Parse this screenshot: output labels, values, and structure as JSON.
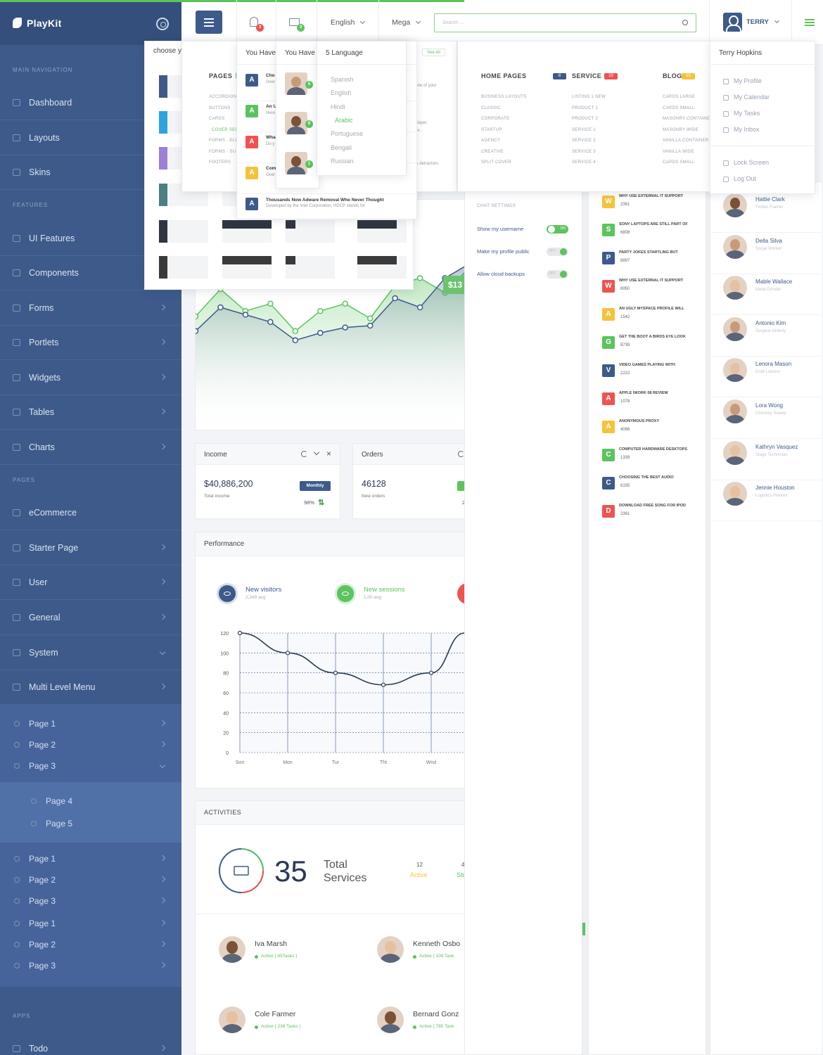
{
  "brand": {
    "name": "PlayKit"
  },
  "sidebar": {
    "sections": [
      "MAIN NAVIGATION",
      "FEATURES",
      "PAGES",
      "APPS"
    ],
    "main": [
      "Dashboard",
      "Layouts",
      "Skins"
    ],
    "features": [
      "UI Features",
      "Components",
      "Forms",
      "Portlets",
      "Widgets",
      "Tables",
      "Charts"
    ],
    "pages": [
      "eCommerce",
      "Starter Page",
      "User",
      "General",
      "System",
      "Multi Level Menu"
    ],
    "multi_a": [
      "Page 1",
      "Page 2",
      "Page 3"
    ],
    "multi_b": [
      "Page 4",
      "Page 5"
    ],
    "multi_c": [
      "Page 1",
      "Page 2",
      "Page 3",
      "Page 1",
      "Page 2",
      "Page 3"
    ],
    "apps": [
      "Todo"
    ]
  },
  "header": {
    "bell_count": "3",
    "mail_count": "3",
    "language": "English",
    "mega": "Mega",
    "search_placeholder": "Search ...",
    "user": "TERRY"
  },
  "skin_dropdown": {
    "label": "choose y"
  },
  "notifications": {
    "title": "You Have",
    "items": [
      {
        "letter": "A",
        "title": "Cho",
        "sub": "Over"
      },
      {
        "letter": "A",
        "title": "An U",
        "sub": "Here"
      },
      {
        "letter": "A",
        "title": "Wha",
        "sub": "Do y"
      },
      {
        "letter": "A",
        "title": "Com",
        "sub": "Over"
      },
      {
        "letter": "A",
        "title": "Thousands Now Adware Removal Who Never Thought",
        "sub": "Developed by the Intel Corporation, HDCP stands for"
      }
    ]
  },
  "messages": {
    "title": "You Have",
    "badges": [
      "5",
      "9",
      "1"
    ]
  },
  "language_dropdown": {
    "title": "5 Language",
    "items": [
      "Spanish",
      "English",
      "Hindi",
      "Arabic",
      "Portuguese",
      "Bengali",
      "Russian"
    ],
    "active": "Arabic"
  },
  "mega_menu": {
    "see_all": "See All",
    "pages_title": "PAGES",
    "pages": [
      "ACCORDION",
      "BUTTONS",
      "CARDS",
      "COVER SEC",
      "FORMS - ELE",
      "FORMS - SU",
      "FOOTERS"
    ],
    "snippets": [
      ", the one of your",
      " best player,",
      "g some .",
      "and its detractors."
    ],
    "home_title": "HOME PAGES",
    "home_badge": "8",
    "home": [
      "BUSINESS LAYOUTS",
      "CLASSIC",
      "CORPORATE",
      "STARTUP",
      "AGENCY",
      "CREATIVE",
      "SPLIT COVER"
    ],
    "service_title": "SERVICE",
    "service_badge": "10",
    "service": [
      "LISTING 1 NEW",
      "PRODUCT 1",
      "PRODUCT 2",
      "SERVICE 1",
      "SERVICE 2",
      "SERVICE 3",
      "SERVICE 4"
    ],
    "blog_title": "BLOG",
    "blog_badge": "10",
    "blog": [
      "CARDS LARGE",
      "CARDS SMALL",
      "MASONRY CONTAINER",
      "MASONRY WIDE",
      "VANILLA CONTAINER",
      "VANILLA WIDE",
      "CARDS SMALL"
    ]
  },
  "user_menu": {
    "name": "Terry Hopkins",
    "items": [
      "My Profile",
      "My Calendar",
      "My Tasks",
      "My Inbox"
    ],
    "items2": [
      "Lock Screen",
      "Log Out"
    ]
  },
  "chat_settings": {
    "title": "CHAT SETTINGS",
    "rows": [
      {
        "label": "Show my username",
        "state": "ON",
        "on": true
      },
      {
        "label": "Make my profile public",
        "state": "OFF",
        "on": false
      },
      {
        "label": "Allow cloud backups",
        "state": "OFF",
        "on": false
      }
    ]
  },
  "chart_badge": "$13",
  "chart_data": [
    {
      "type": "area",
      "series": [
        {
          "color": "#5cc35f",
          "values": [
            55,
            70,
            58,
            62,
            47,
            58,
            62,
            54,
            72,
            76,
            68,
            82
          ]
        },
        {
          "color": "#3d5a8a",
          "values": [
            47,
            60,
            56,
            52,
            42,
            46,
            49,
            50,
            65,
            60,
            76,
            84
          ]
        }
      ]
    },
    {
      "type": "line",
      "categories": [
        "Son",
        "Mon",
        "Tur",
        "Tht",
        "Wnd"
      ],
      "x": [
        0,
        1,
        2,
        3,
        4,
        4.7
      ],
      "values": [
        120,
        100,
        80,
        68,
        80,
        120
      ],
      "yticks": [
        0,
        20,
        40,
        60,
        80,
        100,
        120
      ],
      "ylim": [
        0,
        120
      ]
    }
  ],
  "income": {
    "title": "Income",
    "value": "$40,886,200",
    "sub": "Total income",
    "badge": "Monthly",
    "pct": "98%"
  },
  "orders": {
    "title": "Orders",
    "value": "46128",
    "sub": "New orders",
    "extra": "2"
  },
  "performance": {
    "title": "Performance",
    "legend": [
      {
        "label": "New visitors",
        "sub": "2,349 avg",
        "color": "#3d5a8a"
      },
      {
        "label": "New sessions",
        "sub": "1,00 avg",
        "color": "#5cc35f"
      }
    ]
  },
  "activities": {
    "title": "ACTIVITIES",
    "number": "35",
    "label1": "Total",
    "label2": "Services",
    "stat_num": "12",
    "stat_label": "Active",
    "stat2_num": "4",
    "stat2_label": "Sto",
    "people": [
      {
        "name": "Iva Marsh",
        "status": "Active ( 45Tasks )"
      },
      {
        "name": "Kenneth Osbo",
        "status": "Active ( 109 Task"
      },
      {
        "name": "Cole Farmer",
        "status": "Active ( 236 Tasks )"
      },
      {
        "name": "Bernard Gonz",
        "status": "Active ( 785 Task"
      }
    ]
  },
  "feed": [
    {
      "letter": "W",
      "color": "#f5c33b",
      "title": "WHY USE EXTERNAL IT SUPPORT",
      "num": "2361"
    },
    {
      "letter": "S",
      "color": "#5cc35f",
      "title": "SONY LAPTOPS ARE STILL PART OF",
      "num": "6808"
    },
    {
      "letter": "P",
      "color": "#3d5a8a",
      "title": "PARTY JOKES STARTLING BUT",
      "num": "8897"
    },
    {
      "letter": "W",
      "color": "#ef5350",
      "title": "WHY USE EXTERNAL IT SUPPORT",
      "num": "6950"
    },
    {
      "letter": "A",
      "color": "#f5c33b",
      "title": "AN UGLY MYSPACE PROFILE WILL",
      "num": "1542"
    },
    {
      "letter": "G",
      "color": "#5cc35f",
      "title": "GET THE BOOT A BIRDS EYE LOOK",
      "num": "8739"
    },
    {
      "letter": "V",
      "color": "#3d5a8a",
      "title": "VIDEO GAMES PLAYING WITH",
      "num": "2222"
    },
    {
      "letter": "A",
      "color": "#ef5350",
      "title": "APPLE IWORK 08 REVIEW",
      "num": "1078"
    },
    {
      "letter": "A",
      "color": "#f5c33b",
      "title": "ANONYMOUS PROXY",
      "num": "4066"
    },
    {
      "letter": "C",
      "color": "#5cc35f",
      "title": "COMPUTER HARDWARE DESKTOPS",
      "num": "1339"
    },
    {
      "letter": "C",
      "color": "#3d5a8a",
      "title": "CHOOSING THE BEST AUDIO",
      "num": "6195"
    },
    {
      "letter": "D",
      "color": "#ef5350",
      "title": "DOWNLOAD FREE SONG FOR IPOD",
      "num": "2361"
    }
  ],
  "contacts": [
    {
      "name": "Hattie Clark",
      "role": "Timber Framer"
    },
    {
      "name": "Della Silva",
      "role": "Social Worker"
    },
    {
      "name": "Mable Wallace",
      "role": "Metal Grinder"
    },
    {
      "name": "Antonio Kim",
      "role": "Surgical Orderly"
    },
    {
      "name": "Lenora Mason",
      "role": "Craft Laborer"
    },
    {
      "name": "Lora Wong",
      "role": "Chimney Sweep"
    },
    {
      "name": "Kathryn Vasquez",
      "role": "Stage Technician"
    },
    {
      "name": "Jennie Houston",
      "role": "Logistics Planner"
    }
  ]
}
